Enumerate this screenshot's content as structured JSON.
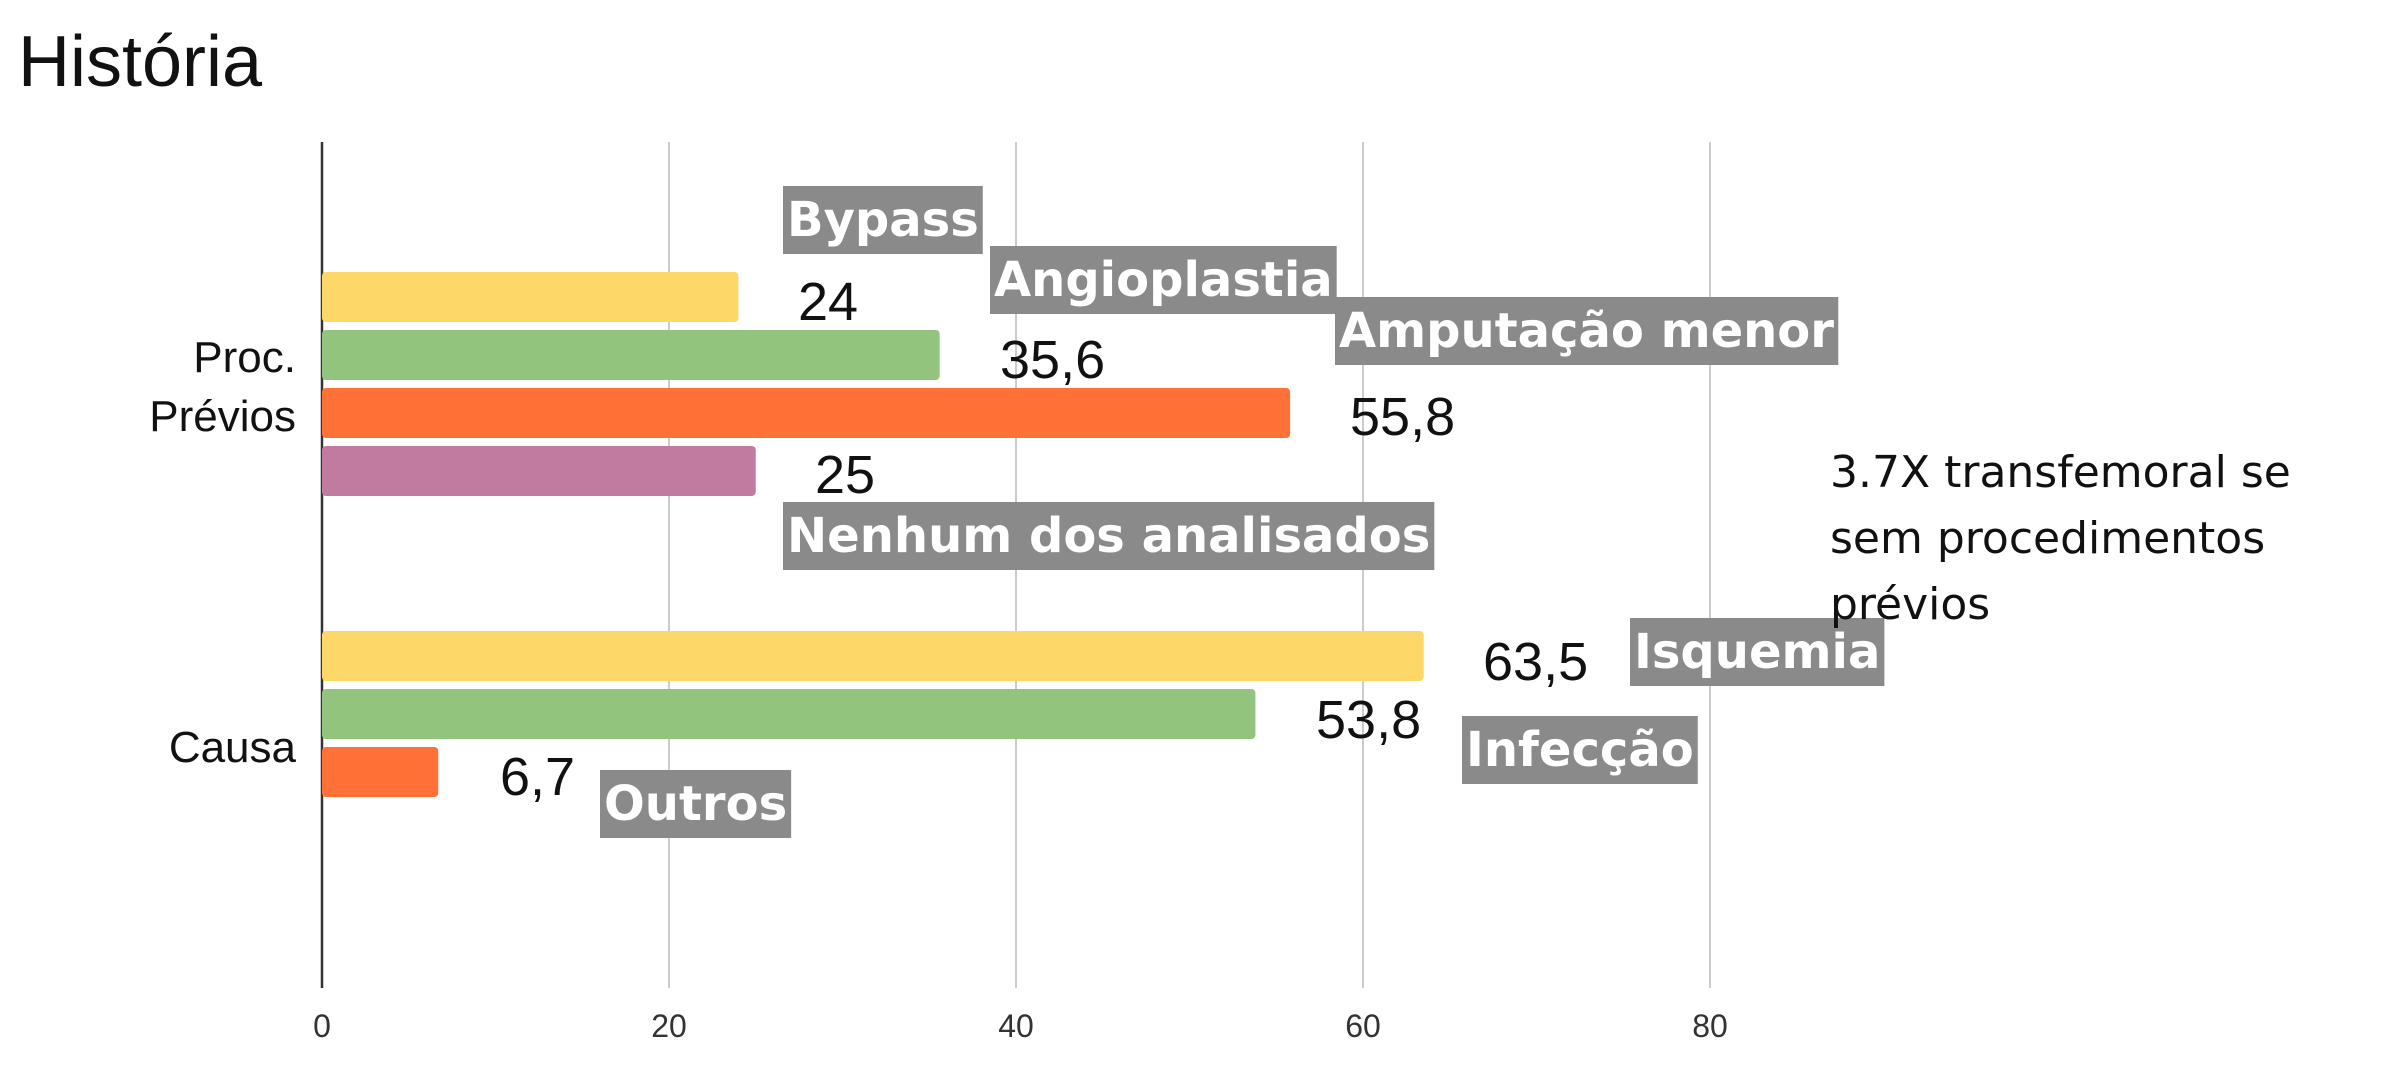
{
  "title": "História",
  "note": "3.7X transfemoral se sem procedimentos prévios",
  "chart_data": {
    "type": "bar",
    "orientation": "horizontal",
    "title": "",
    "xlabel": "",
    "ylabel": "",
    "xlim": [
      0,
      80
    ],
    "x_ticks": [
      "0",
      "20",
      "40",
      "60",
      "80"
    ],
    "grid": true,
    "groups": [
      {
        "label": "Proc. Prévios",
        "label_lines": [
          "Proc.",
          "Prévios"
        ],
        "bars": [
          {
            "name": "Bypass",
            "value": 24,
            "value_label": "24",
            "color": "#FDD767"
          },
          {
            "name": "Angioplastia",
            "value": 35.6,
            "value_label": "35,6",
            "color": "#93C47D"
          },
          {
            "name": "Amputação menor",
            "value": 55.8,
            "value_label": "55,8",
            "color": "#FF7136"
          },
          {
            "name": "Nenhum dos analisados",
            "value": 25,
            "value_label": "25",
            "color": "#C27BA0"
          }
        ]
      },
      {
        "label": "Causa",
        "label_lines": [
          "Causa"
        ],
        "bars": [
          {
            "name": "Isquemia",
            "value": 63.5,
            "value_label": "63,5",
            "color": "#FDD767"
          },
          {
            "name": "Infecção",
            "value": 53.8,
            "value_label": "53,8",
            "color": "#93C47D"
          },
          {
            "name": "Outros",
            "value": 6.7,
            "value_label": "6,7",
            "color": "#FF7136"
          }
        ]
      }
    ]
  }
}
